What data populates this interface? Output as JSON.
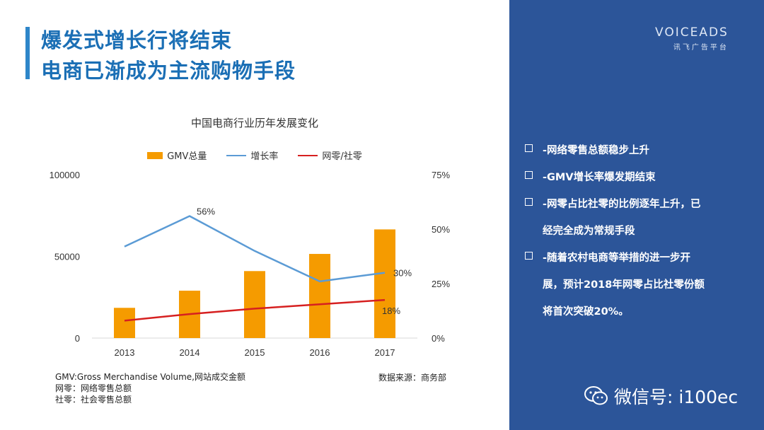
{
  "slide": {
    "title_line1": "爆发式增长行将结束",
    "title_line2": "电商已渐成为主流购物手段"
  },
  "brand": {
    "name": "VOICEADS",
    "subtitle": "讯飞广告平台"
  },
  "notes": {
    "gmv": "GMV:Gross Merchandise Volume,网站成交金额",
    "wangling": "网零：网络零售总额",
    "sheling": "社零：社会零售总额",
    "source": "数据来源：商务部"
  },
  "bullets": [
    {
      "lines": [
        "-网络零售总额稳步上升"
      ]
    },
    {
      "lines": [
        "-GMV增长率爆发期结束"
      ]
    },
    {
      "lines": [
        "-网零占比社零的比例逐年上升，已",
        "经完全成为常规手段"
      ]
    },
    {
      "lines": [
        "-随着农村电商等举措的进一步开",
        "展，预计2018年网零占比社零份额",
        "将首次突破20%。"
      ]
    }
  ],
  "wechat": {
    "label": "微信号: i100ec"
  },
  "colors": {
    "bar": "#f59b00",
    "growth": "#5b9bd5",
    "ratio": "#d62020",
    "panel": "#2c5599",
    "title": "#1b6fb5"
  },
  "chart_data": {
    "type": "bar",
    "title": "中国电商行业历年发展变化",
    "categories": [
      "2013",
      "2014",
      "2015",
      "2016",
      "2017"
    ],
    "left_axis": {
      "min": 0,
      "max": 100000,
      "ticks": [
        "0",
        "50000",
        "100000"
      ],
      "tick_values": [
        0,
        50000,
        100000
      ]
    },
    "right_axis": {
      "min": 0,
      "max": 75,
      "ticks": [
        "0%",
        "25%",
        "50%",
        "75%"
      ],
      "tick_values": [
        0,
        25,
        50,
        75
      ]
    },
    "series": [
      {
        "name": "GMV总量",
        "kind": "bar",
        "axis": "left",
        "values": [
          18500,
          29000,
          41000,
          51500,
          66500
        ]
      },
      {
        "name": "增长率",
        "kind": "line",
        "axis": "right",
        "values": [
          42,
          56,
          40,
          26,
          30
        ]
      },
      {
        "name": "网零/社零",
        "kind": "line",
        "axis": "right",
        "values": [
          8,
          11,
          13.5,
          15.5,
          17.5
        ]
      }
    ],
    "annotations": [
      {
        "series": 1,
        "index": 1,
        "text": "56%"
      },
      {
        "series": 1,
        "index": 4,
        "text": "30%"
      },
      {
        "series": 2,
        "index": 4,
        "text": "18%"
      }
    ]
  }
}
